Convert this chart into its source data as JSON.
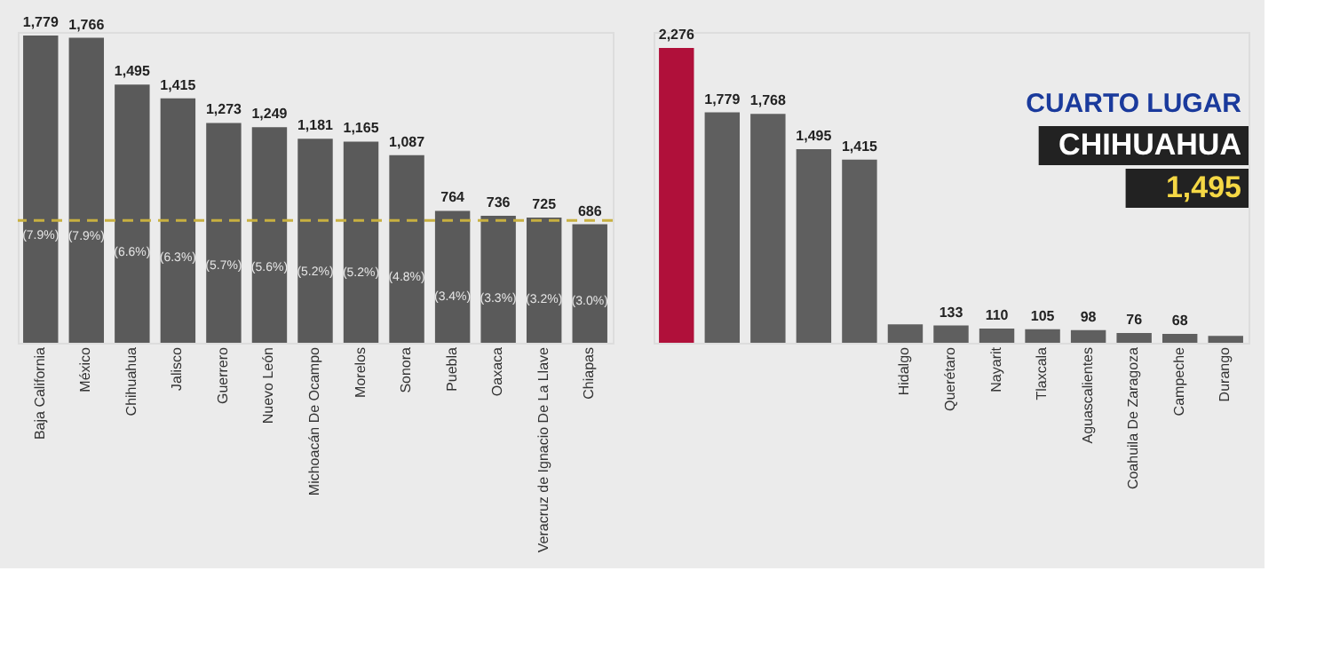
{
  "chart_data": [
    {
      "type": "bar",
      "categories": [
        "Baja California",
        "México",
        "Chihuahua",
        "Jalisco",
        "Guerrero",
        "Nuevo León",
        "Michoacán De Ocampo",
        "Morelos",
        "Sonora",
        "Puebla",
        "Oaxaca",
        "Veracruz de Ignacio De La Llave",
        "Chiapas"
      ],
      "values": [
        1779,
        1766,
        1495,
        1415,
        1273,
        1249,
        1181,
        1165,
        1087,
        764,
        736,
        725,
        686
      ],
      "colors": [
        "#5a5a5a",
        "#5a5a5a",
        "#5a5a5a",
        "#5a5a5a",
        "#5a5a5a",
        "#5a5a5a",
        "#5a5a5a",
        "#5a5a5a",
        "#5a5a5a",
        "#5a5a5a",
        "#5a5a5a",
        "#5a5a5a",
        "#5a5a5a"
      ],
      "value_labels": [
        "1,779",
        "1,766",
        "1,495",
        "1,415",
        "1,273",
        "1,249",
        "1,181",
        "1,165",
        "1,087",
        "764",
        "736",
        "725",
        "686"
      ],
      "ref_lines": [
        {
          "axis": "y",
          "value": 708,
          "color": "#c8b040",
          "line_style": "dashed"
        }
      ],
      "annotations": [
        "(7.9%)",
        "(7.9%)",
        "(6.6%)",
        "(6.3%)",
        "(5.7%)",
        "(5.6%)",
        "(5.2%)",
        "(5.2%)",
        "(4.8%)",
        "(3.4%)",
        "(3.3%)",
        "(3.2%)",
        "(3.0%)"
      ]
    },
    {
      "type": "bar",
      "categories": [
        null,
        null,
        null,
        null,
        null,
        "Hidalgo",
        "Querétaro",
        "Nayarit",
        "Tlaxcala",
        "Aguascalientes",
        "Coahuila De Zaragoza",
        "Campeche",
        "Durango"
      ],
      "values": [
        2276,
        1779,
        1768,
        1495,
        1415,
        142,
        133,
        110,
        105,
        98,
        76,
        68,
        53
      ],
      "colors": [
        "#b0103a",
        "#5f5f5f",
        "#5f5f5f",
        "#5f5f5f",
        "#5f5f5f",
        "#5f5f5f",
        "#5f5f5f",
        "#5f5f5f",
        "#5f5f5f",
        "#5f5f5f",
        "#5f5f5f",
        "#5f5f5f",
        "#5f5f5f"
      ],
      "value_labels": [
        "2,276",
        "1,779",
        "1,768",
        "1,495",
        "1,415",
        null,
        "133",
        "110",
        "105",
        "98",
        "76",
        "68",
        null
      ],
      "annotations": [
        "CUARTO LUGAR",
        "CHIHUAHUA",
        "1,495"
      ]
    }
  ]
}
